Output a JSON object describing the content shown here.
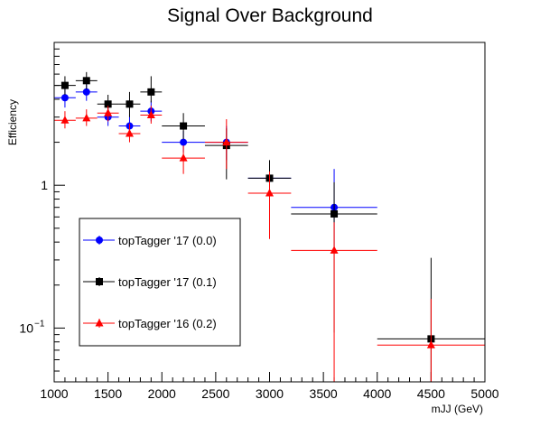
{
  "chart_data": {
    "type": "scatter",
    "title": "Signal Over Background",
    "xlabel": "mJJ (GeV)",
    "ylabel": "Efficiency",
    "xlim": [
      1000,
      5000
    ],
    "ylim": [
      0.042,
      10
    ],
    "ylog": true,
    "grid": false,
    "legend_position": "lower-left",
    "x_ticks": [
      1000,
      1500,
      2000,
      2500,
      3000,
      3500,
      4000,
      4500,
      5000
    ],
    "x_tick_labels": [
      "1000",
      "1500",
      "2000",
      "2500",
      "3000",
      "3500",
      "4000",
      "4500",
      "5000"
    ],
    "y_tick_labels": [
      {
        "value": 0.1,
        "base": "10",
        "exp": "−1"
      },
      {
        "value": 1,
        "base": "1",
        "exp": ""
      }
    ],
    "series": [
      {
        "name": "topTagger '17 (0.0)",
        "color": "#0000ff",
        "marker": "circle",
        "points": [
          {
            "x": 1100,
            "xerr": 100,
            "y": 4.1,
            "ylo": 3.5,
            "yhi": 4.8
          },
          {
            "x": 1300,
            "xerr": 100,
            "y": 4.5,
            "ylo": 3.9,
            "yhi": 5.2
          },
          {
            "x": 1500,
            "xerr": 100,
            "y": 3.0,
            "ylo": 2.6,
            "yhi": 3.5
          },
          {
            "x": 1700,
            "xerr": 100,
            "y": 2.6,
            "ylo": 2.2,
            "yhi": 3.1
          },
          {
            "x": 1900,
            "xerr": 100,
            "y": 3.3,
            "ylo": 2.8,
            "yhi": 3.9
          },
          {
            "x": 2200,
            "xerr": 200,
            "y": 2.0,
            "ylo": 1.7,
            "yhi": 2.4
          },
          {
            "x": 2600,
            "xerr": 200,
            "y": 2.0,
            "ylo": 1.5,
            "yhi": 2.6
          },
          {
            "x": 3000,
            "xerr": 200,
            "y": 1.12,
            "ylo": 0.8,
            "yhi": 1.45
          },
          {
            "x": 3600,
            "xerr": 400,
            "y": 0.7,
            "ylo": 0.35,
            "yhi": 1.3
          }
        ]
      },
      {
        "name": "topTagger '17 (0.1)",
        "color": "#000000",
        "marker": "square",
        "points": [
          {
            "x": 1100,
            "xerr": 100,
            "y": 5.0,
            "ylo": 4.3,
            "yhi": 5.8
          },
          {
            "x": 1300,
            "xerr": 100,
            "y": 5.4,
            "ylo": 4.7,
            "yhi": 6.2
          },
          {
            "x": 1500,
            "xerr": 100,
            "y": 3.7,
            "ylo": 3.2,
            "yhi": 4.3
          },
          {
            "x": 1700,
            "xerr": 100,
            "y": 3.7,
            "ylo": 3.0,
            "yhi": 4.5
          },
          {
            "x": 1900,
            "xerr": 100,
            "y": 4.5,
            "ylo": 3.8,
            "yhi": 5.8
          },
          {
            "x": 2200,
            "xerr": 200,
            "y": 2.6,
            "ylo": 2.1,
            "yhi": 3.2
          },
          {
            "x": 2600,
            "xerr": 200,
            "y": 1.9,
            "ylo": 1.1,
            "yhi": 2.5
          },
          {
            "x": 3000,
            "xerr": 200,
            "y": 1.12,
            "ylo": 0.75,
            "yhi": 1.5
          },
          {
            "x": 3600,
            "xerr": 400,
            "y": 0.63,
            "ylo": 0.093,
            "yhi": 1.05
          },
          {
            "x": 4500,
            "xerr": 500,
            "y": 0.084,
            "ylo": 0.042,
            "yhi": 0.31
          }
        ]
      },
      {
        "name": "topTagger '16 (0.2)",
        "color": "#ff0000",
        "marker": "triangle",
        "points": [
          {
            "x": 1100,
            "xerr": 100,
            "y": 2.85,
            "ylo": 2.5,
            "yhi": 3.3
          },
          {
            "x": 1300,
            "xerr": 100,
            "y": 2.95,
            "ylo": 2.6,
            "yhi": 3.4
          },
          {
            "x": 1500,
            "xerr": 100,
            "y": 3.2,
            "ylo": 2.8,
            "yhi": 3.6
          },
          {
            "x": 1700,
            "xerr": 100,
            "y": 2.3,
            "ylo": 2.0,
            "yhi": 2.7
          },
          {
            "x": 1900,
            "xerr": 100,
            "y": 3.1,
            "ylo": 2.7,
            "yhi": 3.6
          },
          {
            "x": 2200,
            "xerr": 200,
            "y": 1.55,
            "ylo": 1.2,
            "yhi": 1.9
          },
          {
            "x": 2600,
            "xerr": 200,
            "y": 2.0,
            "ylo": 1.3,
            "yhi": 2.9
          },
          {
            "x": 3000,
            "xerr": 200,
            "y": 0.88,
            "ylo": 0.42,
            "yhi": 1.25
          },
          {
            "x": 3600,
            "xerr": 400,
            "y": 0.35,
            "ylo": 0.042,
            "yhi": 0.55
          },
          {
            "x": 4500,
            "xerr": 500,
            "y": 0.076,
            "ylo": 0.042,
            "yhi": 0.16
          }
        ]
      }
    ]
  }
}
